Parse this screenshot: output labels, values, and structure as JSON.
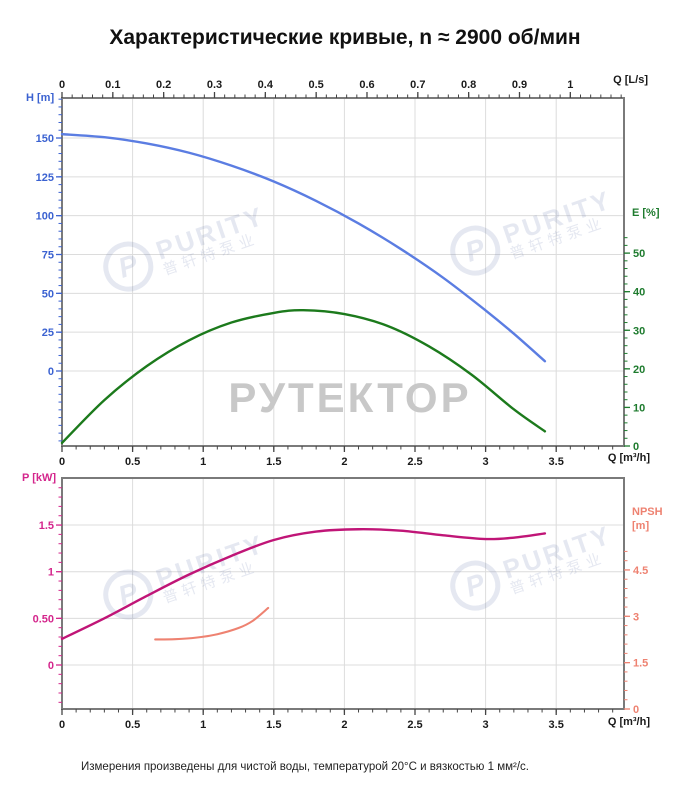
{
  "header": {
    "title": "Характеристические кривые, n ≈ 2900 об/мин"
  },
  "footer": {
    "note": "Измерения произведены для чистой воды, температурой 20°C и вязкостью 1 мм²/с."
  },
  "watermarks": {
    "purity_en": "PURITY",
    "purity_cn": "普轩特泵业",
    "purity_logo_letter": "P",
    "rutektor": "РУТЕКТОР"
  },
  "colors": {
    "grid": "#dcdcdc",
    "frame": "#7a7a7a",
    "axis_tick": "#444444"
  },
  "chart_data": [
    {
      "id": "head-efficiency",
      "type": "line",
      "grid": "on",
      "x_bottom": {
        "title": "Q [m³/h]",
        "minor_step": 0.1,
        "minor_max": 3.9,
        "range": [
          0,
          3.98
        ],
        "ticks": [
          [
            "0",
            0
          ],
          [
            "0.5",
            0.5
          ],
          [
            "1",
            1
          ],
          [
            "1.5",
            1.5
          ],
          [
            "2",
            2
          ],
          [
            "2.5",
            2.5
          ],
          [
            "3",
            3
          ],
          [
            "3.5",
            3.5
          ]
        ]
      },
      "x_top": {
        "title": "Q [L/s]",
        "minor_step": 0.02,
        "minor_max": 1.1,
        "range": [
          0,
          1.105
        ],
        "unit_to_m3h": 3.6,
        "ticks": [
          [
            "0",
            0
          ],
          [
            "0.1",
            0.1
          ],
          [
            "0.2",
            0.2
          ],
          [
            "0.3",
            0.3
          ],
          [
            "0.4",
            0.4
          ],
          [
            "0.5",
            0.5
          ],
          [
            "0.6",
            0.6
          ],
          [
            "0.7",
            0.7
          ],
          [
            "0.8",
            0.8
          ],
          [
            "0.9",
            0.9
          ],
          [
            "1",
            1.0
          ]
        ]
      },
      "y_left": {
        "title": "H [m]",
        "color": "#3b62d1",
        "minor_step": 5,
        "minor_min": -45,
        "minor_max": 175,
        "range": [
          -48,
          176
        ],
        "ticks": [
          [
            "0",
            0
          ],
          [
            "25",
            25
          ],
          [
            "50",
            50
          ],
          [
            "75",
            75
          ],
          [
            "100",
            100
          ],
          [
            "125",
            125
          ],
          [
            "150",
            150
          ]
        ]
      },
      "y_right": {
        "title": "E [%]",
        "color": "#1e7b2e",
        "minor_step": 2,
        "minor_min": 0,
        "minor_max": 54,
        "range": [
          0,
          90
        ],
        "ticks": [
          [
            "0",
            0
          ],
          [
            "10",
            10
          ],
          [
            "20",
            20
          ],
          [
            "30",
            30
          ],
          [
            "40",
            40
          ],
          [
            "50",
            50
          ]
        ]
      },
      "series": [
        {
          "name": "head-curve",
          "axis": "left",
          "color": "#5b7de2",
          "width": 2.4,
          "points": [
            [
              0,
              152.5
            ],
            [
              0.3,
              150.5
            ],
            [
              0.6,
              146.5
            ],
            [
              0.9,
              140.5
            ],
            [
              1.2,
              132.2
            ],
            [
              1.5,
              122
            ],
            [
              1.8,
              109.5
            ],
            [
              2.1,
              95
            ],
            [
              2.4,
              78.5
            ],
            [
              2.7,
              60
            ],
            [
              3.0,
              39
            ],
            [
              3.2,
              24
            ],
            [
              3.42,
              6.3
            ]
          ]
        },
        {
          "name": "efficiency-curve",
          "axis": "right",
          "color": "#1c7a1c",
          "width": 2.4,
          "points": [
            [
              0,
              0.8
            ],
            [
              0.3,
              11.9
            ],
            [
              0.6,
              20.7
            ],
            [
              0.9,
              27.4
            ],
            [
              1.2,
              32
            ],
            [
              1.5,
              34.5
            ],
            [
              1.71,
              35.2
            ],
            [
              2.0,
              34.2
            ],
            [
              2.3,
              31.2
            ],
            [
              2.6,
              25.8
            ],
            [
              2.9,
              18.5
            ],
            [
              3.2,
              9.5
            ],
            [
              3.42,
              3.8
            ]
          ]
        }
      ]
    },
    {
      "id": "power-npsh",
      "type": "line",
      "grid": "on",
      "x_bottom": {
        "title": "Q [m³/h]",
        "minor_step": 0.1,
        "minor_max": 3.9,
        "range": [
          0,
          3.98
        ],
        "ticks": [
          [
            "0",
            0
          ],
          [
            "0.5",
            0.5
          ],
          [
            "1",
            1
          ],
          [
            "1.5",
            1.5
          ],
          [
            "2",
            2
          ],
          [
            "2.5",
            2.5
          ],
          [
            "3",
            3
          ],
          [
            "3.5",
            3.5
          ]
        ]
      },
      "y_left": {
        "title": "P [kW]",
        "color": "#d4268c",
        "minor_step": 0.1,
        "minor_min": -0.4,
        "minor_max": 1.9,
        "range": [
          -0.47,
          2.0
        ],
        "ticks": [
          [
            "0",
            0
          ],
          [
            "0.50",
            0.5
          ],
          [
            "1",
            1
          ],
          [
            "1.5",
            1.5
          ]
        ]
      },
      "y_right": {
        "title": "NPSH",
        "title2": "[m]",
        "color": "#ee8271",
        "minor_step": 0.3,
        "minor_min": 0,
        "minor_max": 5.1,
        "range": [
          0,
          7.45
        ],
        "ticks": [
          [
            "0",
            0
          ],
          [
            "1.5",
            1.5
          ],
          [
            "3",
            3
          ],
          [
            "4.5",
            4.5
          ]
        ]
      },
      "series": [
        {
          "name": "power-curve",
          "axis": "left",
          "color": "#c01577",
          "width": 2.4,
          "points": [
            [
              0,
              0.28
            ],
            [
              0.3,
              0.5
            ],
            [
              0.6,
              0.74
            ],
            [
              0.9,
              0.97
            ],
            [
              1.2,
              1.17
            ],
            [
              1.5,
              1.34
            ],
            [
              1.8,
              1.43
            ],
            [
              2.1,
              1.455
            ],
            [
              2.4,
              1.44
            ],
            [
              2.7,
              1.39
            ],
            [
              3.0,
              1.35
            ],
            [
              3.2,
              1.365
            ],
            [
              3.42,
              1.41
            ]
          ]
        },
        {
          "name": "npsh-curve",
          "axis": "right",
          "color": "#ee8271",
          "width": 2.1,
          "points": [
            [
              0.66,
              2.25
            ],
            [
              0.8,
              2.26
            ],
            [
              0.95,
              2.31
            ],
            [
              1.1,
              2.42
            ],
            [
              1.25,
              2.62
            ],
            [
              1.35,
              2.85
            ],
            [
              1.46,
              3.27
            ]
          ]
        }
      ]
    }
  ]
}
